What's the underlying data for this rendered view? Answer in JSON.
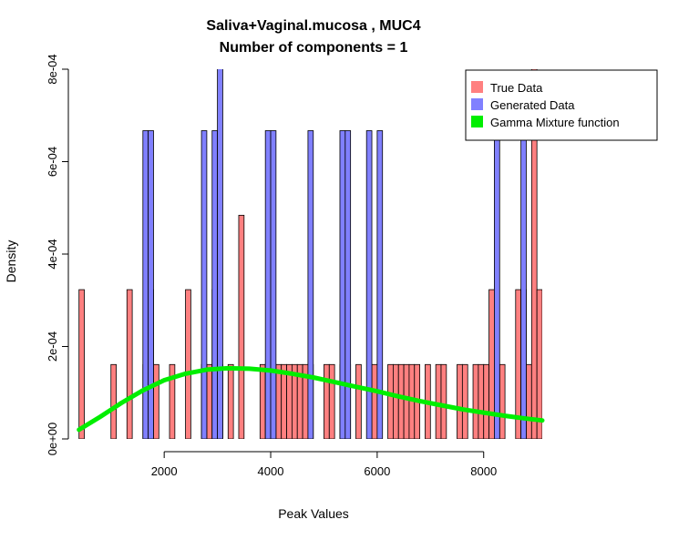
{
  "chart_data": {
    "type": "bar",
    "title": "Saliva+Vaginal.mucosa , MUC4",
    "subtitle": "Number of components =  1",
    "xlabel": "Peak Values",
    "ylabel": "Density",
    "xlim": [
      200,
      9100
    ],
    "ylim": [
      0,
      0.0008
    ],
    "x_ticks": [
      2000,
      4000,
      6000,
      8000
    ],
    "x_tick_labels": [
      "2000",
      "4000",
      "6000",
      "8000"
    ],
    "y_ticks": [
      0,
      0.0002,
      0.0004,
      0.0006,
      0.0008
    ],
    "y_tick_labels": [
      "0e+00",
      "2e-04",
      "4e-04",
      "6e-04",
      "8e-04"
    ],
    "bin_width": 100,
    "legend_position": "top-right",
    "colors": {
      "true_data": "#ff8080",
      "generated_data": "#8080ff",
      "gamma_curve": "#00ee00"
    },
    "legend": {
      "true_data": "True Data",
      "generated_data": "Generated Data",
      "gamma_curve": "Gamma Mixture function"
    },
    "series": [
      {
        "name": "True Data",
        "bins": [
          [
            400,
            0.000323
          ],
          [
            1000,
            0.000161
          ],
          [
            1300,
            0.000323
          ],
          [
            1600,
            0.000161
          ],
          [
            1700,
            0.000323
          ],
          [
            1800,
            0.000161
          ],
          [
            2100,
            0.000161
          ],
          [
            2400,
            0.000323
          ],
          [
            2700,
            0.000161
          ],
          [
            2800,
            0.000161
          ],
          [
            2900,
            0.000323
          ],
          [
            3000,
            0.000161
          ],
          [
            3200,
            0.000161
          ],
          [
            3400,
            0.000484
          ],
          [
            3800,
            0.000161
          ],
          [
            3900,
            0.000161
          ],
          [
            4000,
            0.000161
          ],
          [
            4100,
            0.000161
          ],
          [
            4200,
            0.000161
          ],
          [
            4300,
            0.000161
          ],
          [
            4400,
            0.000161
          ],
          [
            4500,
            0.000161
          ],
          [
            4600,
            0.000161
          ],
          [
            4700,
            0.000161
          ],
          [
            5000,
            0.000161
          ],
          [
            5100,
            0.000161
          ],
          [
            5300,
            0.000161
          ],
          [
            5400,
            0.000161
          ],
          [
            5600,
            0.000161
          ],
          [
            5900,
            0.000161
          ],
          [
            6200,
            0.000161
          ],
          [
            6300,
            0.000161
          ],
          [
            6400,
            0.000161
          ],
          [
            6500,
            0.000161
          ],
          [
            6600,
            0.000161
          ],
          [
            6700,
            0.000161
          ],
          [
            6900,
            0.000161
          ],
          [
            7100,
            0.000161
          ],
          [
            7200,
            0.000161
          ],
          [
            7500,
            0.000161
          ],
          [
            7600,
            0.000161
          ],
          [
            7800,
            0.000161
          ],
          [
            7900,
            0.000161
          ],
          [
            8000,
            0.000161
          ],
          [
            8100,
            0.000323
          ],
          [
            8300,
            0.000161
          ],
          [
            8600,
            0.000323
          ],
          [
            8700,
            0.000323
          ],
          [
            8800,
            0.000161
          ],
          [
            8900,
            0.000806
          ],
          [
            9000,
            0.000323
          ]
        ]
      },
      {
        "name": "Generated Data",
        "bins": [
          [
            1600,
            0.000667
          ],
          [
            1700,
            0.000667
          ],
          [
            2700,
            0.000667
          ],
          [
            2900,
            0.000667
          ],
          [
            3000,
            0.00085
          ],
          [
            3900,
            0.000667
          ],
          [
            4000,
            0.000667
          ],
          [
            4700,
            0.000667
          ],
          [
            5300,
            0.000667
          ],
          [
            5400,
            0.000667
          ],
          [
            5800,
            0.000667
          ],
          [
            6000,
            0.000667
          ],
          [
            8200,
            0.000667
          ],
          [
            8700,
            0.000667
          ]
        ]
      },
      {
        "name": "Gamma Mixture function",
        "x": [
          400,
          800,
          1200,
          1600,
          2000,
          2400,
          2800,
          3200,
          3600,
          4000,
          4400,
          4800,
          5200,
          5600,
          6000,
          6400,
          6800,
          7200,
          7600,
          8000,
          8400,
          8800,
          9100
        ],
        "y": [
          2e-05,
          4.8e-05,
          7.8e-05,
          0.000105,
          0.000127,
          0.000141,
          0.00015,
          0.000153,
          0.000152,
          0.000148,
          0.000141,
          0.000133,
          0.000123,
          0.000113,
          0.000103,
          9.2e-05,
          8.2e-05,
          7.3e-05,
          6.4e-05,
          5.7e-05,
          5e-05,
          4.4e-05,
          4e-05
        ]
      }
    ]
  }
}
